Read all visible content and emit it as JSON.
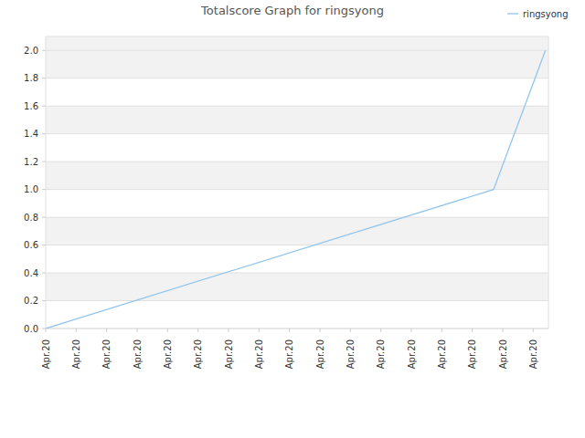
{
  "chart_data": {
    "type": "line",
    "title": "Totalscore Graph for ringsyong",
    "x": [
      0,
      14.7,
      16.4
    ],
    "series": [
      {
        "name": "ringsyong",
        "color": "#92c5ec",
        "values": [
          0,
          1,
          2
        ]
      }
    ],
    "xlim": [
      0,
      16.5
    ],
    "xticks": [
      {
        "value": 0,
        "label": "Apr.20"
      },
      {
        "value": 1,
        "label": "Apr.20"
      },
      {
        "value": 2,
        "label": "Apr.20"
      },
      {
        "value": 3,
        "label": "Apr.20"
      },
      {
        "value": 4,
        "label": "Apr.20"
      },
      {
        "value": 5,
        "label": "Apr.20"
      },
      {
        "value": 6,
        "label": "Apr.20"
      },
      {
        "value": 7,
        "label": "Apr.20"
      },
      {
        "value": 8,
        "label": "Apr.20"
      },
      {
        "value": 9,
        "label": "Apr.20"
      },
      {
        "value": 10,
        "label": "Apr.20"
      },
      {
        "value": 11,
        "label": "Apr.20"
      },
      {
        "value": 12,
        "label": "Apr.20"
      },
      {
        "value": 13,
        "label": "Apr.20"
      },
      {
        "value": 14,
        "label": "Apr.20"
      },
      {
        "value": 15,
        "label": "Apr.20"
      },
      {
        "value": 16,
        "label": "Apr.20"
      }
    ],
    "ylim": [
      0,
      2.1
    ],
    "yticks": [
      {
        "value": 0,
        "label": "0.0"
      },
      0.2,
      0.4,
      0.6,
      0.8,
      {
        "value": 1,
        "label": "1.0"
      },
      1.2,
      1.4,
      1.6,
      1.8,
      {
        "value": 2,
        "label": "2.0"
      }
    ],
    "grid": true,
    "legend": "top-right"
  }
}
